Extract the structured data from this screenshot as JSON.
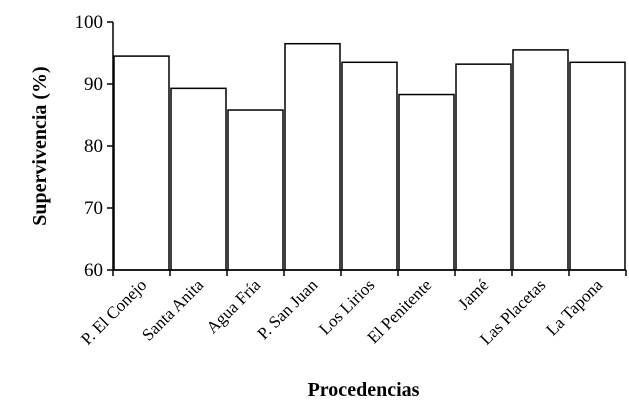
{
  "chart_data": {
    "type": "bar",
    "title": "",
    "xlabel": "Procedencias",
    "ylabel": "Supervivencia  (%)",
    "ylim": [
      60,
      100
    ],
    "yticks": [
      60,
      70,
      80,
      90,
      100
    ],
    "grid": false,
    "legend": "none",
    "categories": [
      "P. El Conejo",
      "Santa Anita",
      "Agua Fría",
      "P. San Juan",
      "Los Lirios",
      "El Penitente",
      "Jamé",
      "Las Placetas",
      "La Tapona"
    ],
    "values": [
      94.5,
      89.3,
      85.8,
      96.5,
      93.5,
      88.3,
      93.2,
      95.5,
      93.5
    ],
    "bar_fill": "#ffffff",
    "bar_stroke": "#000000"
  }
}
